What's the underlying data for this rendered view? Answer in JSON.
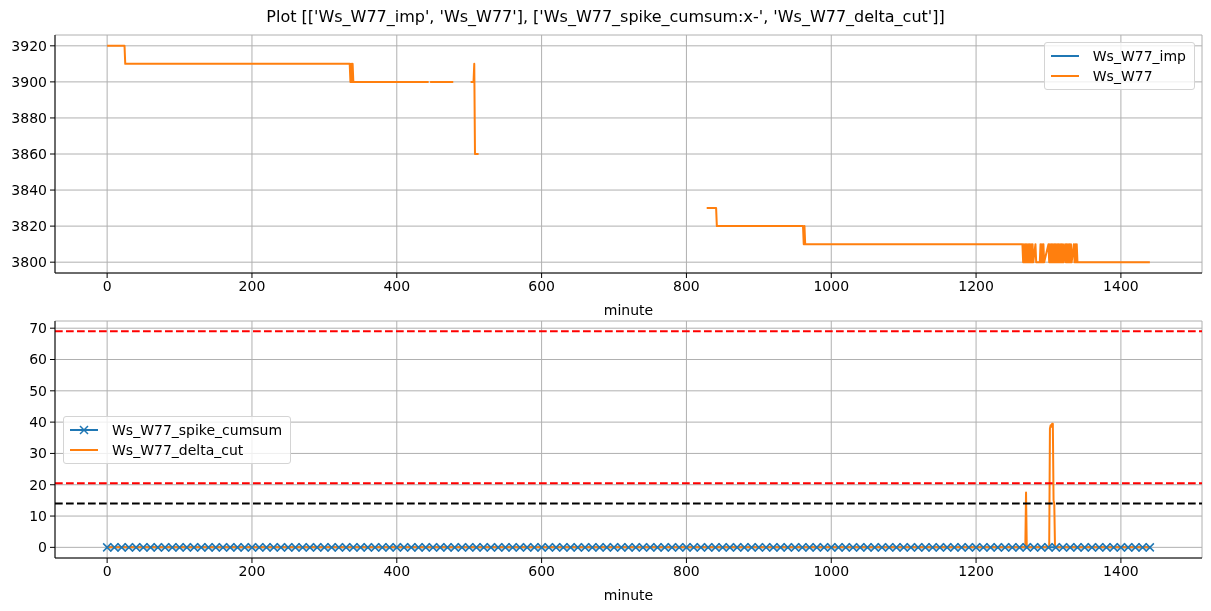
{
  "chart_data": [
    {
      "type": "line",
      "title": "Plot [['Ws_W77_imp', 'Ws_W77'], ['Ws_W77_spike_cumsum:x-', 'Ws_W77_delta_cut']]",
      "xlabel": "minute",
      "x": [
        0,
        24,
        25,
        335,
        336,
        337,
        338,
        339,
        340,
        444,
        445,
        446,
        478,
        479,
        502,
        506,
        507,
        508,
        513,
        514,
        828,
        841,
        842,
        961,
        962,
        963,
        964,
        1264,
        1265,
        1266,
        1267,
        1268,
        1269,
        1270,
        1271,
        1272,
        1273,
        1274,
        1275,
        1276,
        1277,
        1278,
        1279,
        1282,
        1283,
        1288,
        1289,
        1290,
        1291,
        1292,
        1293,
        1294,
        1300,
        1301,
        1302,
        1303,
        1304,
        1305,
        1306,
        1307,
        1308,
        1309,
        1310,
        1311,
        1312,
        1313,
        1314,
        1315,
        1316,
        1317,
        1318,
        1319,
        1320,
        1321,
        1323,
        1324,
        1325,
        1326,
        1327,
        1328,
        1329,
        1330,
        1331,
        1332,
        1335,
        1336,
        1337,
        1338,
        1339,
        1340,
        1440
      ],
      "series": [
        {
          "name": "Ws_W77_imp",
          "color": "#1f77b4",
          "values": [
            null,
            null,
            null,
            null,
            null,
            null,
            null,
            null,
            null,
            null,
            null,
            null,
            null,
            null,
            null,
            null,
            null,
            null,
            null,
            null,
            null,
            null,
            null,
            null,
            null,
            null,
            null,
            null,
            null,
            null,
            null,
            null,
            null,
            null,
            null,
            null,
            null,
            null,
            null,
            null,
            null,
            null,
            null,
            null,
            null,
            null,
            null,
            null,
            null,
            null,
            null,
            null,
            null,
            null,
            null,
            null,
            null,
            null,
            null,
            null,
            null,
            null,
            null,
            null,
            null,
            null,
            null,
            null,
            null,
            null,
            null,
            null,
            null,
            null,
            null,
            null,
            null,
            null,
            null,
            null,
            null,
            null,
            null,
            null,
            null,
            null,
            null,
            null,
            null,
            null,
            null
          ]
        },
        {
          "name": "Ws_W77",
          "color": "#ff7f0e",
          "values": [
            3920,
            3920,
            3910,
            3910,
            3900,
            3910,
            3900,
            3910,
            3900,
            3900,
            null,
            3900,
            3900,
            null,
            3900,
            3900,
            3910,
            3860,
            3860,
            null,
            3830,
            3830,
            3820,
            3820,
            3810,
            3820,
            3810,
            3810,
            3800,
            3810,
            3800,
            3810,
            3800,
            3810,
            3800,
            3810,
            3800,
            3810,
            3800,
            3810,
            3800,
            3810,
            3800,
            3810,
            3800,
            3800,
            3810,
            3800,
            3810,
            3800,
            3810,
            3800,
            3810,
            3800,
            3810,
            3800,
            3810,
            3800,
            3810,
            3800,
            3810,
            3800,
            3810,
            3800,
            3810,
            3800,
            3810,
            3800,
            3810,
            3800,
            3810,
            3800,
            3810,
            3800,
            3810,
            3800,
            3810,
            3800,
            3810,
            3800,
            3810,
            3800,
            3810,
            3800,
            3810,
            3800,
            3810,
            3800,
            3810,
            3800,
            3800
          ]
        }
      ],
      "xlim": [
        -72,
        1512
      ],
      "xticks": [
        0,
        200,
        400,
        600,
        800,
        1000,
        1200,
        1400
      ],
      "ylim": [
        3794,
        3926
      ],
      "yticks": [
        3800,
        3820,
        3840,
        3860,
        3880,
        3900,
        3920
      ],
      "grid": true,
      "legend": "top right"
    },
    {
      "type": "line",
      "xlabel": "minute",
      "series": [
        {
          "name": "Ws_W77_spike_cumsum",
          "color": "#1f77b4",
          "marker": "cross",
          "x": [
            0,
            10,
            20,
            30,
            40,
            50,
            60,
            70,
            80,
            90,
            100,
            110,
            120,
            130,
            140,
            150,
            160,
            170,
            180,
            190,
            200,
            210,
            220,
            230,
            240,
            250,
            260,
            270,
            280,
            290,
            300,
            310,
            320,
            330,
            340,
            350,
            360,
            370,
            380,
            390,
            400,
            410,
            420,
            430,
            440,
            450,
            460,
            470,
            480,
            490,
            500,
            510,
            520,
            530,
            540,
            550,
            560,
            570,
            580,
            590,
            600,
            610,
            620,
            630,
            640,
            650,
            660,
            670,
            680,
            690,
            700,
            710,
            720,
            730,
            740,
            750,
            760,
            770,
            780,
            790,
            800,
            810,
            820,
            830,
            840,
            850,
            860,
            870,
            880,
            890,
            900,
            910,
            920,
            930,
            940,
            950,
            960,
            970,
            980,
            990,
            1000,
            1010,
            1020,
            1030,
            1040,
            1050,
            1060,
            1070,
            1080,
            1090,
            1100,
            1110,
            1120,
            1130,
            1140,
            1150,
            1160,
            1170,
            1180,
            1190,
            1200,
            1210,
            1220,
            1230,
            1240,
            1250,
            1260,
            1270,
            1280,
            1290,
            1300,
            1310,
            1320,
            1330,
            1340,
            1350,
            1360,
            1370,
            1380,
            1390,
            1400,
            1410,
            1420,
            1430,
            1440
          ],
          "values": [
            0,
            0,
            0,
            0,
            0,
            0,
            0,
            0,
            0,
            0,
            0,
            0,
            0,
            0,
            0,
            0,
            0,
            0,
            0,
            0,
            0,
            0,
            0,
            0,
            0,
            0,
            0,
            0,
            0,
            0,
            0,
            0,
            0,
            0,
            0,
            0,
            0,
            0,
            0,
            0,
            0,
            0,
            0,
            0,
            0,
            0,
            0,
            0,
            0,
            0,
            0,
            0,
            0,
            0,
            0,
            0,
            0,
            0,
            0,
            0,
            0,
            0,
            0,
            0,
            0,
            0,
            0,
            0,
            0,
            0,
            0,
            0,
            0,
            0,
            0,
            0,
            0,
            0,
            0,
            0,
            0,
            0,
            0,
            0,
            0,
            0,
            0,
            0,
            0,
            0,
            0,
            0,
            0,
            0,
            0,
            0,
            0,
            0,
            0,
            0,
            0,
            0,
            0,
            0,
            0,
            0,
            0,
            0,
            0,
            0,
            0,
            0,
            0,
            0,
            0,
            0,
            0,
            0,
            0,
            0,
            0,
            0,
            0,
            0,
            0,
            0,
            0,
            0,
            0,
            0,
            0,
            0,
            0,
            0,
            0,
            0,
            0,
            0,
            0,
            0,
            0,
            0,
            0,
            0,
            0
          ]
        },
        {
          "name": "Ws_W77_delta_cut",
          "color": "#ff7f0e",
          "x": [
            0,
            1268,
            1269,
            1270,
            1301,
            1302,
            1303,
            1304,
            1305,
            1306,
            1307,
            1308,
            1309,
            1440
          ],
          "values": [
            0,
            0,
            17.5,
            0,
            0,
            38,
            39,
            38.5,
            39.5,
            39.5,
            15,
            14,
            0,
            0
          ]
        }
      ],
      "xlim": [
        -72,
        1512
      ],
      "xticks": [
        0,
        200,
        400,
        600,
        800,
        1000,
        1200,
        1400
      ],
      "ylim": [
        -3.4,
        72.3
      ],
      "yticks": [
        0,
        10,
        20,
        30,
        40,
        50,
        60,
        70
      ],
      "grid": true,
      "legend": "left",
      "ref_lines": [
        {
          "axis": "y",
          "value": 69,
          "color": "#ff0000",
          "line_style": "dashed"
        },
        {
          "axis": "y",
          "value": 20.5,
          "color": "#ff0000",
          "line_style": "dashed"
        },
        {
          "axis": "y",
          "value": 14,
          "color": "#000000",
          "line_style": "dashed"
        }
      ]
    }
  ]
}
